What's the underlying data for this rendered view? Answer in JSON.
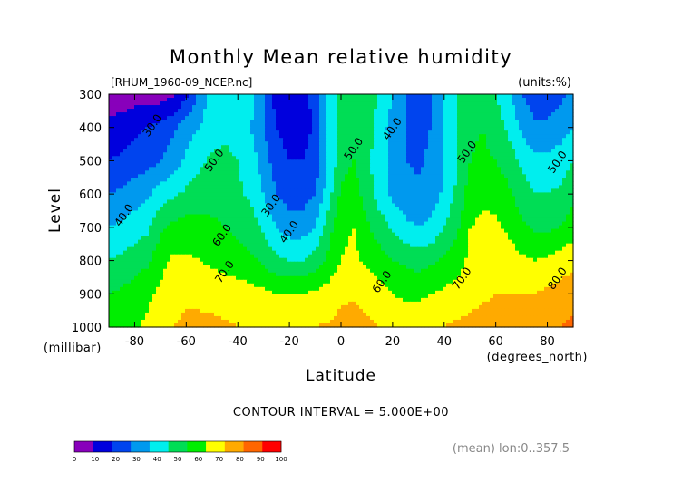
{
  "chart_data": {
    "type": "heatmap",
    "title": "Monthly Mean relative humidity",
    "file_label": "[RHUM_1960-09_NCEP.nc]",
    "units_label": "(units:%)",
    "xlabel": "Latitude",
    "x_units": "(degrees_north)",
    "ylabel": "Level",
    "y_units": "(millibar)",
    "xlim": [
      -90,
      90
    ],
    "ylim": [
      300,
      1000
    ],
    "y_inverted": true,
    "x_ticks": [
      "-80",
      "-60",
      "-40",
      "-20",
      "0",
      "20",
      "40",
      "60",
      "80"
    ],
    "y_ticks": [
      "300",
      "400",
      "500",
      "600",
      "700",
      "800",
      "900",
      "1000"
    ],
    "contour_interval_text": "CONTOUR INTERVAL = 5.000E+00",
    "footer_text": "(mean) lon:0..357.5",
    "contour_labels": [
      {
        "text": "30.0",
        "lat": -72,
        "lev": 400
      },
      {
        "text": "50.0",
        "lat": -48,
        "lev": 505
      },
      {
        "text": "40.0",
        "lat": -83,
        "lev": 670
      },
      {
        "text": "30.0",
        "lat": -26,
        "lev": 640
      },
      {
        "text": "40.0",
        "lat": -19,
        "lev": 720
      },
      {
        "text": "60.0",
        "lat": -45,
        "lev": 730
      },
      {
        "text": "70.0",
        "lat": -44,
        "lev": 840
      },
      {
        "text": "50.0",
        "lat": 6,
        "lev": 470
      },
      {
        "text": "40.0",
        "lat": 21,
        "lev": 410
      },
      {
        "text": "60.0",
        "lat": 17,
        "lev": 870
      },
      {
        "text": "50.0",
        "lat": 50,
        "lev": 480
      },
      {
        "text": "70.0",
        "lat": 48,
        "lev": 860
      },
      {
        "text": "50.0",
        "lat": 85,
        "lev": 510
      },
      {
        "text": "80.0",
        "lat": 85,
        "lev": 860
      }
    ],
    "colorbar": {
      "ticks": [
        "0",
        "10",
        "20",
        "30",
        "40",
        "50",
        "60",
        "70",
        "80",
        "90",
        "100"
      ],
      "colors": [
        "#8800bb",
        "#0000dd",
        "#0044ee",
        "#0099ee",
        "#00eeee",
        "#00dd55",
        "#00ee00",
        "#ffff00",
        "#ffaa00",
        "#ff6600",
        "#ff0000"
      ]
    },
    "fields": [
      {
        "lev": 300,
        "values": [
          5,
          5,
          5,
          5,
          5,
          8,
          18,
          32,
          45,
          50,
          50,
          45,
          30,
          15,
          12,
          14,
          25,
          42,
          55,
          58,
          55,
          50,
          40,
          30,
          28,
          30,
          40,
          50,
          55,
          55,
          50,
          42,
          30,
          25,
          25,
          28,
          32
        ]
      },
      {
        "lev": 400,
        "values": [
          12,
          14,
          18,
          20,
          24,
          28,
          35,
          40,
          45,
          48,
          46,
          40,
          30,
          20,
          15,
          15,
          22,
          40,
          55,
          58,
          55,
          45,
          35,
          30,
          28,
          30,
          40,
          50,
          58,
          60,
          55,
          48,
          38,
          32,
          32,
          35,
          40
        ]
      },
      {
        "lev": 500,
        "values": [
          20,
          22,
          25,
          26,
          30,
          35,
          42,
          48,
          52,
          52,
          50,
          45,
          35,
          25,
          20,
          20,
          25,
          40,
          56,
          60,
          52,
          45,
          38,
          30,
          28,
          32,
          40,
          50,
          60,
          62,
          60,
          55,
          48,
          42,
          42,
          45,
          50
        ]
      },
      {
        "lev": 600,
        "values": [
          30,
          32,
          35,
          38,
          45,
          48,
          52,
          55,
          56,
          55,
          52,
          48,
          40,
          30,
          25,
          25,
          30,
          45,
          62,
          65,
          55,
          45,
          38,
          35,
          32,
          35,
          42,
          52,
          65,
          68,
          67,
          62,
          55,
          50,
          50,
          52,
          58
        ]
      },
      {
        "lev": 700,
        "values": [
          40,
          42,
          45,
          48,
          58,
          62,
          64,
          64,
          62,
          60,
          58,
          55,
          48,
          40,
          35,
          35,
          40,
          55,
          68,
          70,
          62,
          55,
          48,
          42,
          40,
          42,
          50,
          58,
          70,
          72,
          72,
          68,
          62,
          58,
          58,
          60,
          65
        ]
      },
      {
        "lev": 800,
        "values": [
          50,
          52,
          55,
          58,
          67,
          72,
          72,
          70,
          68,
          66,
          64,
          62,
          58,
          52,
          50,
          50,
          55,
          62,
          70,
          72,
          68,
          64,
          60,
          58,
          56,
          58,
          62,
          66,
          72,
          75,
          76,
          75,
          72,
          70,
          72,
          74,
          78
        ]
      },
      {
        "lev": 900,
        "values": [
          60,
          62,
          65,
          68,
          72,
          76,
          78,
          78,
          77,
          76,
          75,
          74,
          72,
          70,
          70,
          70,
          72,
          74,
          78,
          79,
          77,
          74,
          70,
          68,
          68,
          70,
          72,
          74,
          76,
          78,
          80,
          80,
          80,
          80,
          82,
          84,
          86
        ]
      },
      {
        "lev": 1000,
        "values": [
          65,
          66,
          68,
          72,
          76,
          80,
          82,
          82,
          82,
          81,
          80,
          80,
          79,
          78,
          78,
          79,
          80,
          81,
          83,
          84,
          82,
          80,
          78,
          77,
          78,
          79,
          80,
          82,
          83,
          85,
          86,
          87,
          88,
          88,
          90,
          90,
          92
        ]
      }
    ]
  }
}
